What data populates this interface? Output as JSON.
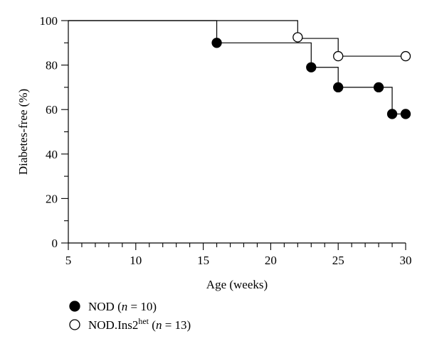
{
  "chart_data": {
    "type": "line",
    "step": true,
    "xlabel": "Age (weeks)",
    "ylabel": "Diabetes-free (%)",
    "xlim": [
      5,
      30
    ],
    "ylim": [
      0,
      100
    ],
    "x_ticks": [
      5,
      10,
      15,
      20,
      25,
      30
    ],
    "y_ticks": [
      0,
      20,
      40,
      60,
      80,
      100
    ],
    "x_minor_step": 1,
    "y_minor_step": 10,
    "grid": false,
    "legend_position": "bottom-left",
    "series": [
      {
        "name": "NOD",
        "n_label": "n = 10",
        "marker": "filled-circle",
        "steps": [
          [
            5,
            100
          ],
          [
            16,
            90
          ],
          [
            23,
            79
          ],
          [
            25,
            70
          ],
          [
            29,
            58
          ],
          [
            30,
            58
          ]
        ],
        "markers": [
          [
            16,
            90
          ],
          [
            23,
            79
          ],
          [
            25,
            70
          ],
          [
            28,
            70
          ],
          [
            29,
            58
          ],
          [
            30,
            58
          ]
        ]
      },
      {
        "name": "NOD.Ins2",
        "name_sup": "het",
        "n_label": "n = 13",
        "marker": "open-circle",
        "steps": [
          [
            5,
            100
          ],
          [
            22,
            92
          ],
          [
            25,
            84
          ],
          [
            30,
            84
          ]
        ],
        "markers": [
          [
            22,
            92.5
          ],
          [
            25,
            84
          ],
          [
            30,
            84
          ]
        ]
      }
    ]
  }
}
